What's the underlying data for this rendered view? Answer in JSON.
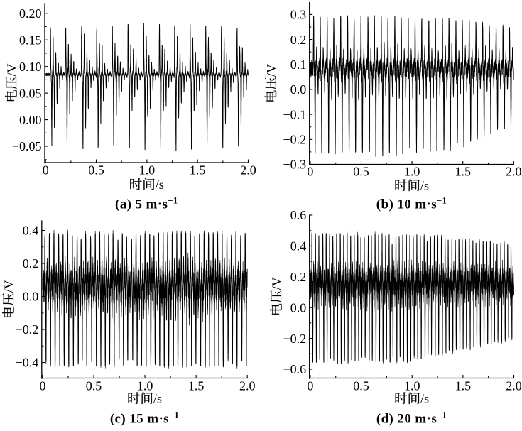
{
  "figure": {
    "background": "#ffffff",
    "ink_color": "#000000",
    "panel_count": 4
  },
  "chart_data": [
    {
      "type": "line",
      "caption": "(a) 5 m·s⁻¹",
      "caption_prefix": "(a) 5 m·s",
      "caption_sup": "−1",
      "wind_speed_m_per_s": 5,
      "xlabel": "时间/s",
      "ylabel": "电压/V",
      "xlim": [
        0,
        2.0
      ],
      "ylim": [
        -0.08,
        0.22
      ],
      "xtick_labels": [
        "0",
        "0.5",
        "1.0",
        "1.5",
        "2.0"
      ],
      "ytick_labels": [
        "0.20",
        "0.15",
        "0.10",
        "0.05",
        "0.00",
        "−0.05"
      ],
      "signal": {
        "baseline_V": 0.085,
        "burst_count": 13,
        "burst_period_s": 0.1535,
        "first_burst_s": 0.042,
        "carrier_freq_hz": 38,
        "attack_s": 0.003,
        "decay_s": 0.075,
        "decay_pow": 1.7,
        "peak_pos_V": 0.19,
        "peak_neg_V": -0.063,
        "pos_env_rel_V": [
          [
            0,
            0.105
          ],
          [
            2,
            0.105
          ]
        ],
        "neg_env_rel_V": [
          [
            0,
            0.148
          ],
          [
            2,
            0.148
          ]
        ],
        "ripple_amp_V": 0.0025,
        "ripple_freq_hz": 280,
        "ripple_neg_skew": 1.0,
        "cluster_amp_V": 0.022,
        "cluster_freq_hz": 120,
        "amp_lo": 0.93,
        "jit_lo": 0.62,
        "core_stroke": 0.85,
        "seed": 11
      }
    },
    {
      "type": "line",
      "caption": "(b) 10 m·s⁻¹",
      "caption_prefix": "(b) 10 m·s",
      "caption_sup": "−1",
      "wind_speed_m_per_s": 10,
      "xlabel": "时间/s",
      "ylabel": "电压/V",
      "xlim": [
        0,
        2.0
      ],
      "ylim": [
        -0.3,
        0.35
      ],
      "xtick_labels": [
        "0",
        "0.5",
        "1.0",
        "1.5",
        "2.0"
      ],
      "ytick_labels": [
        "0.3",
        "0.2",
        "0.1",
        "0.0",
        "−0.1",
        "−0.2",
        "−0.3"
      ],
      "signal": {
        "baseline_V": 0.085,
        "burst_count": 30,
        "burst_period_s": 0.0665,
        "first_burst_s": 0.028,
        "carrier_freq_hz": 34,
        "attack_s": 0.002,
        "decay_s": 0.038,
        "decay_pow": 1.3,
        "peak_pos_V": 0.3,
        "peak_neg_V": -0.28,
        "pos_env_rel_V": [
          [
            0,
            0.215
          ],
          [
            1.3,
            0.205
          ],
          [
            2,
            0.172
          ]
        ],
        "neg_env_rel_V": [
          [
            0,
            0.365
          ],
          [
            1.25,
            0.355
          ],
          [
            2,
            0.245
          ]
        ],
        "ripple_amp_V": 0.026,
        "ripple_freq_hz": 270,
        "ripple_neg_skew": 1.35,
        "cluster_amp_V": 0.035,
        "cluster_freq_hz": 150,
        "amp_lo": 0.94,
        "jit_lo": 0.7,
        "core_stroke": 0.9,
        "seed": 23
      }
    },
    {
      "type": "line",
      "caption": "(c) 15 m·s⁻¹",
      "caption_prefix": "(c) 15 m·s",
      "caption_sup": "−1",
      "wind_speed_m_per_s": 15,
      "xlabel": "时间/s",
      "ylabel": "电压/V",
      "xlim": [
        0,
        2.0
      ],
      "ylim": [
        -0.5,
        0.46
      ],
      "xtick_labels": [
        "0",
        "0.5",
        "1.0",
        "1.5",
        "2.0"
      ],
      "ytick_labels": [
        "0.4",
        "0.2",
        "0.0",
        "−0.2",
        "−0.4"
      ],
      "signal": {
        "baseline_V": 0.08,
        "burst_count": 45,
        "burst_period_s": 0.0444,
        "first_burst_s": 0.02,
        "carrier_freq_hz": 45,
        "attack_s": 0.002,
        "decay_s": 0.03,
        "decay_pow": 1.2,
        "peak_pos_V": 0.38,
        "peak_neg_V": -0.42,
        "pos_env_rel_V": [
          [
            0,
            0.3
          ],
          [
            2,
            0.3
          ]
        ],
        "neg_env_rel_V": [
          [
            0,
            0.5
          ],
          [
            2,
            0.5
          ]
        ],
        "ripple_amp_V": 0.075,
        "ripple_freq_hz": 300,
        "ripple_neg_skew": 1.45,
        "cluster_amp_V": 0.04,
        "cluster_freq_hz": 140,
        "amp_lo": 0.94,
        "jit_lo": 0.5,
        "core_stroke": 1.0,
        "seed": 37
      }
    },
    {
      "type": "line",
      "caption": "(d) 20 m·s⁻¹",
      "caption_prefix": "(d) 20 m·s",
      "caption_sup": "−1",
      "wind_speed_m_per_s": 20,
      "xlabel": "时间/s",
      "ylabel": "电压/V",
      "xlim": [
        0,
        2.0
      ],
      "ylim": [
        -0.6,
        0.6
      ],
      "xtick_labels": [
        "0",
        "0.5",
        "1.0",
        "1.5",
        "2.0"
      ],
      "ytick_labels": [
        "0.6",
        "0.4",
        "0.2",
        "0.0",
        "−0.2",
        "−0.6"
      ],
      "signal": {
        "baseline_V": 0.17,
        "burst_count": 58,
        "burst_period_s": 0.0343,
        "first_burst_s": 0.015,
        "carrier_freq_hz": 55,
        "attack_s": 0.002,
        "decay_s": 0.02,
        "decay_pow": 1.2,
        "peak_pos_V": 0.48,
        "peak_neg_V": -0.6,
        "pos_env_rel_V": [
          [
            0,
            0.31
          ],
          [
            1.05,
            0.3
          ],
          [
            2,
            0.24
          ]
        ],
        "neg_env_rel_V": [
          [
            0,
            0.53
          ],
          [
            0.95,
            0.52
          ],
          [
            2,
            0.37
          ]
        ],
        "ripple_amp_V": 0.072,
        "ripple_freq_hz": 300,
        "ripple_neg_skew": 1.35,
        "cluster_amp_V": 0,
        "cluster_freq_hz": 130,
        "amp_lo": 0.94,
        "jit_lo": 0.55,
        "core_stroke": 0.95,
        "seed": 53
      }
    }
  ]
}
